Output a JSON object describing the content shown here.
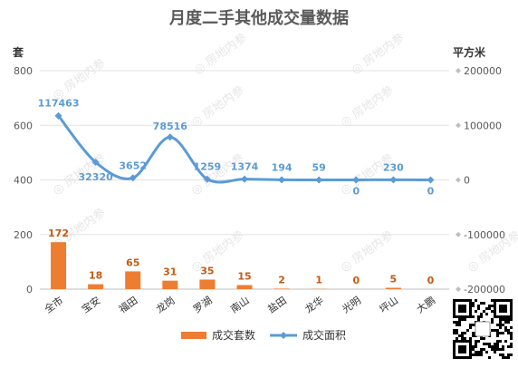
{
  "chart_data": {
    "type": "bar",
    "title": "月度二手其他成交量数据",
    "categories": [
      "全市",
      "宝安",
      "福田",
      "龙岗",
      "罗湖",
      "南山",
      "盐田",
      "龙华",
      "光明",
      "坪山",
      "大鹏"
    ],
    "series": [
      {
        "name": "成交套数",
        "type": "bar",
        "axis": "left",
        "values": [
          172,
          18,
          65,
          31,
          35,
          15,
          2,
          1,
          0,
          5,
          0
        ],
        "color": "#ed7d31"
      },
      {
        "name": "成交面积",
        "type": "line",
        "axis": "right",
        "values": [
          117463,
          32320,
          3652,
          78516,
          1259,
          1374,
          194,
          59,
          0,
          230,
          0
        ],
        "color": "#5b9bd5"
      }
    ],
    "ylabel_left": "套",
    "ylabel_right": "平方米",
    "ylim_left": [
      0,
      800
    ],
    "ylim_right": [
      -200000,
      200000
    ],
    "yticks_left": [
      "0",
      "200",
      "400",
      "600",
      "800"
    ],
    "yticks_right": [
      "-200000",
      "-100000",
      "0",
      "100000",
      "200000"
    ],
    "grid": true,
    "legend_position": "bottom"
  },
  "watermark_text": "房地内参"
}
